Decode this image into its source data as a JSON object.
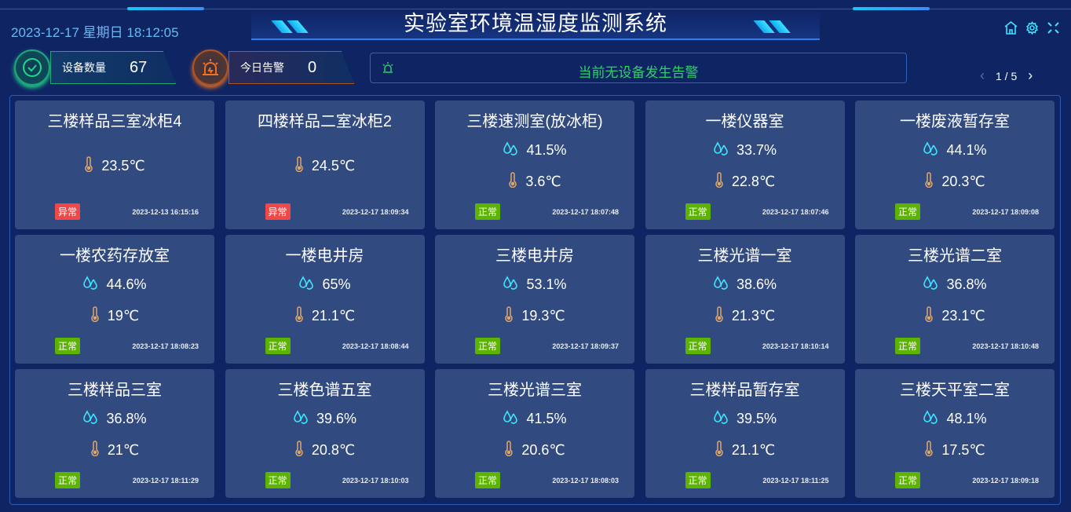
{
  "header": {
    "title": "实验室环境温湿度监测系统",
    "datetime": "2023-12-17 星期日 18:12:05",
    "icons": [
      "home-icon",
      "gear-icon",
      "fullscreen-icon"
    ]
  },
  "stats": [
    {
      "label": "设备数量",
      "value": "67",
      "color": "#22d88a"
    },
    {
      "label": "今日告警",
      "value": "0",
      "color": "#f07020"
    }
  ],
  "alert": {
    "message": "当前无设备发生告警",
    "color": "#2fd06a"
  },
  "pager": {
    "text": "1 / 5"
  },
  "colors": {
    "normal": "#5cb300",
    "abnormal": "#f04848",
    "humidity": "#3ee4ff",
    "temp": "#e0a868"
  },
  "devices": [
    {
      "name": "三楼样品三室冰柜4",
      "humidity": null,
      "temp": "23.5℃",
      "status": "异常",
      "time": "2023-12-13 16:15:16"
    },
    {
      "name": "四楼样品二室冰柜2",
      "humidity": null,
      "temp": "24.5℃",
      "status": "异常",
      "time": "2023-12-17 18:09:34"
    },
    {
      "name": "三楼速测室(放冰柜)",
      "humidity": "41.5%",
      "temp": "3.6℃",
      "status": "正常",
      "time": "2023-12-17 18:07:48"
    },
    {
      "name": "一楼仪器室",
      "humidity": "33.7%",
      "temp": "22.8℃",
      "status": "正常",
      "time": "2023-12-17 18:07:46"
    },
    {
      "name": "一楼废液暂存室",
      "humidity": "44.1%",
      "temp": "20.3℃",
      "status": "正常",
      "time": "2023-12-17 18:09:08"
    },
    {
      "name": "一楼农药存放室",
      "humidity": "44.6%",
      "temp": "19℃",
      "status": "正常",
      "time": "2023-12-17 18:08:23"
    },
    {
      "name": "一楼电井房",
      "humidity": "65%",
      "temp": "21.1℃",
      "status": "正常",
      "time": "2023-12-17 18:08:44"
    },
    {
      "name": "三楼电井房",
      "humidity": "53.1%",
      "temp": "19.3℃",
      "status": "正常",
      "time": "2023-12-17 18:09:37"
    },
    {
      "name": "三楼光谱一室",
      "humidity": "38.6%",
      "temp": "21.3℃",
      "status": "正常",
      "time": "2023-12-17 18:10:14"
    },
    {
      "name": "三楼光谱二室",
      "humidity": "36.8%",
      "temp": "23.1℃",
      "status": "正常",
      "time": "2023-12-17 18:10:48"
    },
    {
      "name": "三楼样品三室",
      "humidity": "36.8%",
      "temp": "21℃",
      "status": "正常",
      "time": "2023-12-17 18:11:29"
    },
    {
      "name": "三楼色谱五室",
      "humidity": "39.6%",
      "temp": "20.8℃",
      "status": "正常",
      "time": "2023-12-17 18:10:03"
    },
    {
      "name": "三楼光谱三室",
      "humidity": "41.5%",
      "temp": "20.6℃",
      "status": "正常",
      "time": "2023-12-17 18:08:03"
    },
    {
      "name": "三楼样品暂存室",
      "humidity": "39.5%",
      "temp": "21.1℃",
      "status": "正常",
      "time": "2023-12-17 18:11:25"
    },
    {
      "name": "三楼天平室二室",
      "humidity": "48.1%",
      "temp": "17.5℃",
      "status": "正常",
      "time": "2023-12-17 18:09:18"
    }
  ]
}
